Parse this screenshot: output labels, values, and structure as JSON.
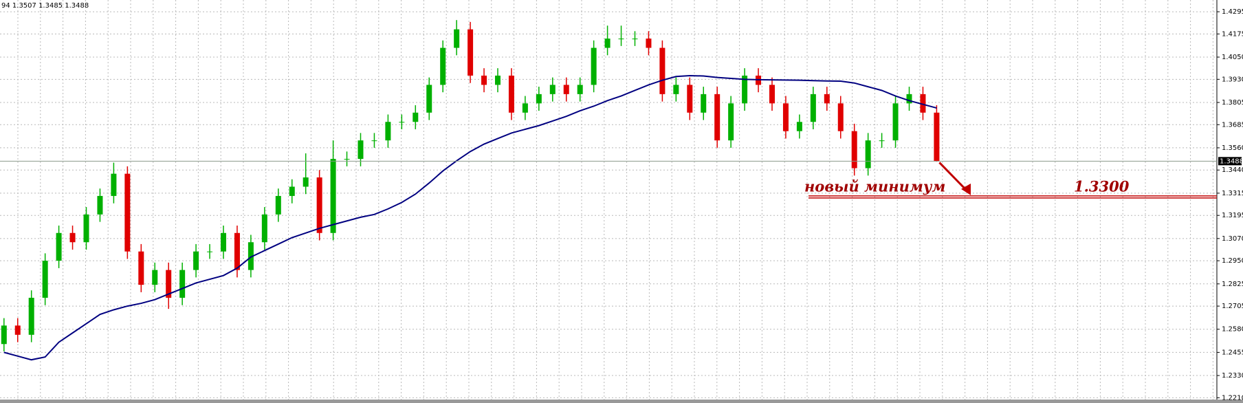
{
  "chart_data": {
    "type": "candlestick",
    "header": "94 1.3507 1.3485 1.3488",
    "up_color": "#00b000",
    "down_color": "#e00000",
    "ma_color": "#000080",
    "ylim": [
      1.2189,
      1.4351
    ],
    "yticks": [
      {
        "value": 1.4295,
        "label": "1.4295"
      },
      {
        "value": 1.4175,
        "label": "1.4175"
      },
      {
        "value": 1.405,
        "label": "1.4050"
      },
      {
        "value": 1.393,
        "label": "1.3930"
      },
      {
        "value": 1.3805,
        "label": "1.3805"
      },
      {
        "value": 1.3685,
        "label": "1.3685"
      },
      {
        "value": 1.356,
        "label": "1.3560"
      },
      {
        "value": 1.344,
        "label": "1.3440"
      },
      {
        "value": 1.3315,
        "label": "1.3315"
      },
      {
        "value": 1.3195,
        "label": "1.3195"
      },
      {
        "value": 1.307,
        "label": "1.3070"
      },
      {
        "value": 1.295,
        "label": "1.2950"
      },
      {
        "value": 1.2825,
        "label": "1.2825"
      },
      {
        "value": 1.2705,
        "label": "1.2705"
      },
      {
        "value": 1.258,
        "label": "1.2580"
      },
      {
        "value": 1.2455,
        "label": "1.2455"
      },
      {
        "value": 1.233,
        "label": "1.2330"
      },
      {
        "value": 1.221,
        "label": "1.2210"
      }
    ],
    "grid": true,
    "open": [
      1.25,
      1.26,
      1.255,
      1.275,
      1.295,
      1.31,
      1.305,
      1.32,
      1.33,
      1.342,
      1.3,
      1.282,
      1.29,
      1.275,
      1.29,
      1.3,
      1.3,
      1.31,
      1.29,
      1.305,
      1.32,
      1.33,
      1.335,
      1.34,
      1.31,
      1.35,
      1.35,
      1.36,
      1.36,
      1.37,
      1.37,
      1.375,
      1.39,
      1.41,
      1.42,
      1.395,
      1.39,
      1.395,
      1.375,
      1.38,
      1.385,
      1.39,
      1.385,
      1.39,
      1.41,
      1.415,
      1.415,
      1.415,
      1.41,
      1.385,
      1.39,
      1.375,
      1.385,
      1.36,
      1.38,
      1.395,
      1.39,
      1.38,
      1.365,
      1.37,
      1.385,
      1.38,
      1.365,
      1.345,
      1.36,
      1.36,
      1.38,
      1.385,
      1.375
    ],
    "high": [
      1.264,
      1.264,
      1.279,
      1.299,
      1.314,
      1.314,
      1.324,
      1.334,
      1.348,
      1.346,
      1.304,
      1.294,
      1.294,
      1.294,
      1.304,
      1.304,
      1.314,
      1.314,
      1.309,
      1.324,
      1.334,
      1.339,
      1.353,
      1.344,
      1.36,
      1.354,
      1.364,
      1.364,
      1.374,
      1.374,
      1.379,
      1.394,
      1.414,
      1.425,
      1.424,
      1.399,
      1.399,
      1.399,
      1.384,
      1.389,
      1.394,
      1.394,
      1.394,
      1.414,
      1.422,
      1.422,
      1.419,
      1.419,
      1.414,
      1.394,
      1.394,
      1.389,
      1.389,
      1.384,
      1.399,
      1.399,
      1.394,
      1.384,
      1.374,
      1.389,
      1.389,
      1.384,
      1.369,
      1.364,
      1.364,
      1.384,
      1.389,
      1.389,
      1.379
    ],
    "low": [
      1.246,
      1.251,
      1.251,
      1.271,
      1.291,
      1.301,
      1.301,
      1.316,
      1.326,
      1.296,
      1.278,
      1.278,
      1.269,
      1.271,
      1.286,
      1.296,
      1.296,
      1.286,
      1.286,
      1.301,
      1.316,
      1.326,
      1.331,
      1.306,
      1.306,
      1.346,
      1.346,
      1.356,
      1.356,
      1.366,
      1.366,
      1.371,
      1.386,
      1.406,
      1.391,
      1.386,
      1.386,
      1.371,
      1.371,
      1.376,
      1.381,
      1.381,
      1.381,
      1.386,
      1.406,
      1.411,
      1.411,
      1.406,
      1.381,
      1.381,
      1.371,
      1.371,
      1.356,
      1.356,
      1.376,
      1.386,
      1.376,
      1.361,
      1.361,
      1.366,
      1.376,
      1.361,
      1.341,
      1.341,
      1.356,
      1.356,
      1.376,
      1.371,
      1.3485
    ],
    "close": [
      1.26,
      1.255,
      1.275,
      1.295,
      1.31,
      1.305,
      1.32,
      1.33,
      1.342,
      1.3,
      1.282,
      1.29,
      1.275,
      1.29,
      1.3,
      1.3,
      1.31,
      1.29,
      1.305,
      1.32,
      1.33,
      1.335,
      1.34,
      1.31,
      1.35,
      1.35,
      1.36,
      1.36,
      1.37,
      1.37,
      1.375,
      1.39,
      1.41,
      1.42,
      1.395,
      1.39,
      1.395,
      1.375,
      1.38,
      1.385,
      1.39,
      1.385,
      1.39,
      1.41,
      1.415,
      1.415,
      1.415,
      1.41,
      1.385,
      1.39,
      1.375,
      1.385,
      1.36,
      1.38,
      1.395,
      1.39,
      1.38,
      1.365,
      1.37,
      1.385,
      1.38,
      1.365,
      1.345,
      1.36,
      1.36,
      1.38,
      1.385,
      1.375,
      1.3488
    ],
    "ma": [
      1.2455,
      1.2435,
      1.2415,
      1.243,
      1.251,
      1.256,
      1.261,
      1.266,
      1.2685,
      1.2705,
      1.272,
      1.274,
      1.277,
      1.28,
      1.283,
      1.285,
      1.287,
      1.291,
      1.297,
      1.3005,
      1.304,
      1.3075,
      1.31,
      1.3125,
      1.3145,
      1.3165,
      1.3185,
      1.32,
      1.323,
      1.3265,
      1.331,
      1.337,
      1.3435,
      1.349,
      1.354,
      1.358,
      1.361,
      1.364,
      1.366,
      1.368,
      1.3705,
      1.373,
      1.376,
      1.3785,
      1.3815,
      1.384,
      1.387,
      1.39,
      1.3925,
      1.3945,
      1.395,
      1.3948,
      1.394,
      1.3935,
      1.393,
      1.3928,
      1.3927,
      1.3926,
      1.3925,
      1.3923,
      1.3921,
      1.392,
      1.391,
      1.389,
      1.387,
      1.384,
      1.3815,
      1.3795,
      1.3775
    ],
    "last_price": {
      "value": 1.3488,
      "label": "1.3488"
    },
    "annotation": "новый минимум",
    "target_level": {
      "value": 1.33,
      "label": "1.3300"
    }
  }
}
